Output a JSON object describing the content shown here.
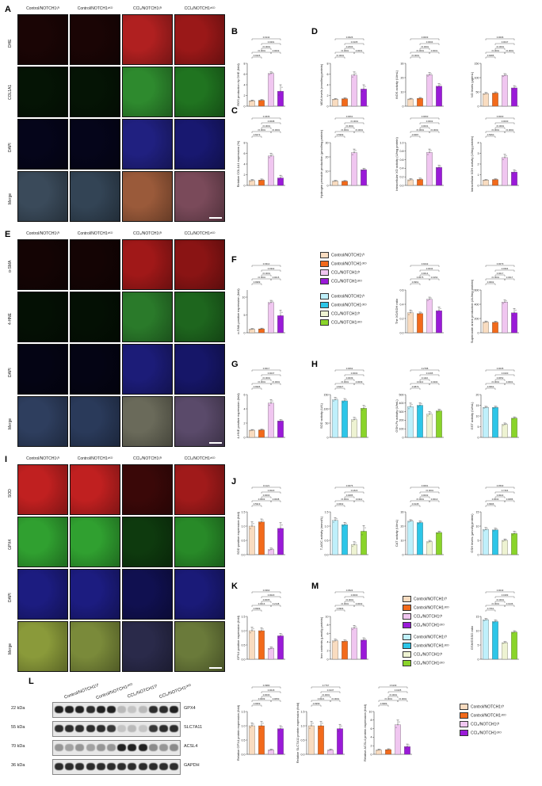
{
  "micro_panels": [
    {
      "panel": "A",
      "groups": [
        "Control/NOTCH1ᶠ/ᶠ",
        "Control/NOTCH1ᶜᴷᴼ",
        "CCl₄/NOTCH1ᶠ/ᶠ",
        "CCl₄/NOTCH1ᶜᴷᴼ"
      ],
      "rows": [
        "DHE",
        "COL1A1",
        "DAPI",
        "Merge"
      ],
      "row_colors": [
        [
          "#1a0505",
          "#1a0505",
          "#b02020",
          "#9a1818"
        ],
        [
          "#051405",
          "#051405",
          "#2e8a2e",
          "#207420"
        ],
        [
          "#05051a",
          "#05051a",
          "#202080",
          "#181870"
        ],
        [
          "#3a4a5a",
          "#334455",
          "#9a5a3a",
          "#7a4a5a"
        ]
      ]
    },
    {
      "panel": "E",
      "groups": [
        "Control/NOTCH1ᶠ/ᶠ",
        "Control/NOTCH1ᶜᴷᴼ",
        "CCl₄/NOTCH1ᶠ/ᶠ",
        "CCl₄/NOTCH1ᶜᴷᴼ"
      ],
      "rows": [
        "α-SMA",
        "4-HNE",
        "DAPI",
        "Merge"
      ],
      "row_colors": [
        [
          "#140404",
          "#140404",
          "#a01818",
          "#8a1414"
        ],
        [
          "#041004",
          "#041004",
          "#2a7a2a",
          "#1e661e"
        ],
        [
          "#040414",
          "#040414",
          "#1c1c78",
          "#161668"
        ],
        [
          "#2e3e5e",
          "#2a3a5a",
          "#6a6a5a",
          "#5a4a6a"
        ]
      ]
    },
    {
      "panel": "I",
      "groups": [
        "Control/NOTCH1ᶠ/ᶠ",
        "Control/NOTCH1ᶜᴷᴼ",
        "CCl₄/NOTCH1ᶠ/ᶠ",
        "CCl₄/NOTCH1ᶜᴷᴼ"
      ],
      "rows": [
        "SOD",
        "GPX4",
        "DAPI",
        "Merge"
      ],
      "row_colors": [
        [
          "#c02020",
          "#c02020",
          "#3a0808",
          "#a01a1a"
        ],
        [
          "#30a030",
          "#30a030",
          "#0e3a0e",
          "#288a28"
        ],
        [
          "#1c1c80",
          "#1c1c80",
          "#101050",
          "#1a1a78"
        ],
        [
          "#8a9a3a",
          "#7a8a3a",
          "#2a2a4a",
          "#6a7a3a"
        ]
      ]
    }
  ],
  "panel_letters": [
    "A",
    "B",
    "C",
    "D",
    "E",
    "F",
    "G",
    "H",
    "I",
    "J",
    "K",
    "L",
    "M"
  ],
  "legends": {
    "four_groups_a": [
      "Control/NOTCH1ᶠ/ᶠ",
      "Control/NOTCH1ᶜᴷᴼ",
      "CCl₄/NOTCH1ᶠ/ᶠ",
      "CCl₄/NOTCH1ᶜᴷᴼ"
    ],
    "colors_a": [
      "#f9dcc0",
      "#f26a1b",
      "#f0c6f0",
      "#9a1ad8"
    ],
    "colors_b": [
      "#bff0fb",
      "#2dc6e8",
      "#eef3d2",
      "#8ad42a"
    ]
  },
  "chart_data": [
    {
      "id": "B",
      "type": "bar",
      "ylabel": "ROS production by DHE (fold)",
      "ylim": [
        0,
        8
      ],
      "yticks": [
        "0",
        "2",
        "4",
        "6",
        "8"
      ],
      "values": [
        1,
        1.1,
        6.1,
        2.8
      ],
      "errors": [
        0.15,
        0.15,
        0.3,
        1.2
      ],
      "palette": "a",
      "stats": [
        "0.0426",
        "<0.0001",
        "<0.0001",
        "0.0003",
        "0.0291",
        "0.0142"
      ]
    },
    {
      "id": "D1",
      "type": "bar",
      "ylabel": "MDA levels (nmol/mg protein)",
      "ylim": [
        0,
        8
      ],
      "yticks": [
        "0",
        "2",
        "4",
        "6",
        "8"
      ],
      "values": [
        1.3,
        1.4,
        5.8,
        3.2
      ],
      "errors": [
        0.15,
        0.2,
        0.6,
        0.8
      ],
      "palette": "a",
      "stats": [
        "<0.0001",
        "<0.0001",
        "0.2003",
        "0.0001",
        "0.0105",
        "0.0026"
      ]
    },
    {
      "id": "D2",
      "type": "bar",
      "ylabel": "iNOS activity (U/mL)",
      "ylim": [
        0,
        30
      ],
      "yticks": [
        "0",
        "10",
        "20",
        "30"
      ],
      "values": [
        5,
        5.5,
        22,
        14
      ],
      "errors": [
        0.5,
        0.6,
        1.5,
        1.8
      ],
      "palette": "a",
      "stats": [
        "<0.0001",
        "<0.0001",
        "<0.0001",
        "0.0001",
        "0.0004",
        "0.0003"
      ]
    },
    {
      "id": "D3",
      "type": "bar",
      "ylabel": "NO levels (μg/mL)",
      "ylim": [
        0,
        150
      ],
      "yticks": [
        "0",
        "50",
        "100",
        "150"
      ],
      "values": [
        44,
        46,
        108,
        64
      ],
      "errors": [
        4,
        4,
        6,
        8
      ],
      "palette": "a",
      "stats": [
        "0.6685",
        "<0.0001",
        "<0.0001",
        "<0.0001",
        "0.0047",
        "0.0006"
      ]
    },
    {
      "id": "C",
      "type": "bar",
      "ylabel": "Relative COL1A1 expression (%)",
      "ylim": [
        0,
        8
      ],
      "yticks": [
        "0",
        "2",
        "4",
        "6",
        "8"
      ],
      "values": [
        0.9,
        1.0,
        5.5,
        1.4
      ],
      "errors": [
        0.2,
        0.2,
        0.5,
        0.5
      ],
      "palette": "a",
      "stats": [
        "0.6673",
        "<0.0001",
        "<0.0001",
        "<0.0001",
        "0.0098",
        "0.4636"
      ]
    },
    {
      "id": "C2",
      "type": "bar",
      "ylabel": "Hydrogen peroxide production (μmol/mg protein)",
      "ylim": [
        0,
        30
      ],
      "yticks": [
        "0",
        "10",
        "20",
        "30"
      ],
      "values": [
        3,
        3,
        23,
        11
      ],
      "errors": [
        0.5,
        0.4,
        2.5,
        1
      ],
      "palette": "a",
      "stats": [
        "0.5999",
        "<0.0001",
        "<0.0001",
        "<0.0001",
        "<0.0001",
        "0.0061"
      ]
    },
    {
      "id": "C3",
      "type": "bar",
      "ylabel": "Intracellular XO activity (U/mg protein)",
      "ylim": [
        0,
        1.0
      ],
      "yticks": [
        "0.0",
        "0.2",
        "0.4",
        "0.6",
        "0.8",
        "1.0"
      ],
      "values": [
        0.13,
        0.14,
        0.77,
        0.42
      ],
      "errors": [
        0.03,
        0.03,
        0.08,
        0.05
      ],
      "palette": "a",
      "stats": [
        "0.6687",
        "<0.0001",
        "0.0031",
        "<0.0001",
        "0.0002",
        "0.0060"
      ]
    },
    {
      "id": "C4",
      "type": "bar",
      "ylabel": "Intracellular XDH activity (U/mg protein)",
      "ylim": [
        0,
        4
      ],
      "yticks": [
        "0",
        "1",
        "2",
        "3",
        "4"
      ],
      "values": [
        0.5,
        0.55,
        2.6,
        1.25
      ],
      "errors": [
        0.05,
        0.06,
        0.3,
        0.2
      ],
      "palette": "a",
      "stats": [
        "0.5660",
        "<0.0001",
        "<0.0001",
        "<0.0001",
        "0.0030",
        "0.0000"
      ]
    },
    {
      "id": "F",
      "type": "bar",
      "ylabel": "α-SMA positive expression (fold)",
      "ylim": [
        0,
        12
      ],
      "yticks": [
        "0",
        "5",
        "10"
      ],
      "values": [
        1,
        1.1,
        8.5,
        4.8
      ],
      "errors": [
        0.2,
        0.2,
        0.6,
        1.5
      ],
      "palette": "a",
      "stats": [
        "0.9989",
        "<0.0001",
        "<0.0001",
        "0.0015",
        "0.0302",
        "0.0314"
      ]
    },
    {
      "id": "F2",
      "type": "bar",
      "ylabel": "The XO/XDH ratio",
      "ylim": [
        0,
        0.6
      ],
      "yticks": [
        "0.0",
        "0.2",
        "0.4",
        "0.6"
      ],
      "values": [
        0.28,
        0.27,
        0.47,
        0.31
      ],
      "errors": [
        0.04,
        0.02,
        0.03,
        0.05
      ],
      "palette": "a",
      "stats": [
        "0.9961",
        "0.0075",
        "0.0014",
        "0.0154",
        "0.0034",
        "0.9442"
      ]
    },
    {
      "id": "F3",
      "type": "bar",
      "ylabel": "Superoxide anion production (AU/mg protein)",
      "ylim": [
        0,
        600
      ],
      "yticks": [
        "0",
        "200",
        "400",
        "600"
      ],
      "values": [
        150,
        148,
        430,
        280
      ],
      "errors": [
        15,
        15,
        30,
        60
      ],
      "palette": "a",
      "stats": [
        "0.9602",
        "<0.0001",
        "0.0017",
        "0.0317",
        "0.0394",
        "0.0079"
      ]
    },
    {
      "id": "G",
      "type": "bar",
      "ylabel": "4-HNE positive expression (fold)",
      "ylim": [
        0,
        6
      ],
      "yticks": [
        "0",
        "2",
        "4",
        "6"
      ],
      "values": [
        1,
        1.05,
        4.8,
        2.3
      ],
      "errors": [
        0.1,
        0.1,
        0.5,
        0.2
      ],
      "palette": "a",
      "stats": [
        "0.9995",
        "<0.0001",
        "<0.0001",
        "<0.0001",
        "0.0037",
        "0.0017"
      ]
    },
    {
      "id": "H1",
      "type": "bar",
      "ylabel": "SOD activity (U/L)",
      "ylim": [
        0,
        150
      ],
      "yticks": [
        "0",
        "50",
        "100",
        "150"
      ],
      "values": [
        132,
        128,
        62,
        102
      ],
      "errors": [
        8,
        8,
        8,
        10
      ],
      "palette": "b",
      "stats": [
        "0.8427",
        "<0.0001",
        "0.0039",
        "0.0009",
        "0.0004",
        "0.0062"
      ]
    },
    {
      "id": "H2",
      "type": "bar",
      "ylabel": "GSH-Px activity (U/mL)",
      "ylim": [
        0,
        500
      ],
      "yticks": [
        "0",
        "100",
        "200",
        "300",
        "400",
        "500"
      ],
      "values": [
        360,
        375,
        270,
        310
      ],
      "errors": [
        40,
        30,
        30,
        20
      ],
      "palette": "b",
      "stats": [
        "0.9879",
        "0.0113",
        "0.1110",
        "0.3204",
        "0.1695",
        "0.2788"
      ]
    },
    {
      "id": "H3",
      "type": "bar",
      "ylabel": "GST activity (U/mL)",
      "ylim": [
        0,
        20
      ],
      "yticks": [
        "0",
        "5",
        "10",
        "15",
        "20"
      ],
      "values": [
        14,
        14,
        6,
        9
      ],
      "errors": [
        0.5,
        0.6,
        0.7,
        0.6
      ],
      "palette": "b",
      "stats": [
        "0.9962",
        "<0.0001",
        "0.0052",
        "0.0001",
        "0.0100",
        "0.0035"
      ]
    },
    {
      "id": "J1",
      "type": "bar",
      "ylabel": "SOD positive expression (fold)",
      "ylim": [
        0,
        1.5
      ],
      "yticks": [
        "0.0",
        "0.5",
        "1.0",
        "1.5"
      ],
      "values": [
        1.0,
        1.15,
        0.18,
        0.92
      ],
      "errors": [
        0.15,
        0.1,
        0.05,
        0.2
      ],
      "palette": "a",
      "stats": [
        "0.5919",
        "0.0003",
        "0.0003",
        "0.0008",
        "0.0020",
        "0.1121"
      ]
    },
    {
      "id": "J2",
      "type": "bar",
      "ylabel": "T-AOC activity (mmol/L)",
      "ylim": [
        0,
        1.5
      ],
      "yticks": [
        "0.0",
        "0.5",
        "1.0",
        "1.5"
      ],
      "values": [
        1.2,
        1.05,
        0.35,
        0.82
      ],
      "errors": [
        0.1,
        0.08,
        0.1,
        0.2
      ],
      "palette": "b",
      "stats": [
        "0.0602",
        "<0.0001",
        "0.0085",
        "0.0112",
        "0.1823",
        "0.0076"
      ]
    },
    {
      "id": "J3",
      "type": "bar",
      "ylabel": "CAT activity (U/mL)",
      "ylim": [
        0,
        30
      ],
      "yticks": [
        "0",
        "10",
        "20",
        "30"
      ],
      "values": [
        23.5,
        22.5,
        9,
        15.5
      ],
      "errors": [
        1,
        1.2,
        1,
        1
      ],
      "palette": "b",
      "stats": [
        "0.9138",
        "<0.0001",
        "0.0032",
        "0.0010",
        "<0.0001",
        "0.0091"
      ]
    },
    {
      "id": "J4",
      "type": "bar",
      "ylabel": "GSH levels (μmol/g protein)",
      "ylim": [
        0,
        15
      ],
      "yticks": [
        "0",
        "5",
        "10",
        "15"
      ],
      "values": [
        8.8,
        8.7,
        5,
        7.4
      ],
      "errors": [
        0.7,
        0.6,
        0.5,
        0.8
      ],
      "palette": "b",
      "stats": [
        "0.9996",
        "0.0030",
        "0.0022",
        "0.0086",
        "0.7464",
        "0.0530"
      ]
    },
    {
      "id": "K",
      "type": "bar",
      "ylabel": "GPX4 positive expression (fold)",
      "ylim": [
        0,
        1.5
      ],
      "yticks": [
        "0.0",
        "0.5",
        "1.0",
        "1.5"
      ],
      "values": [
        1.0,
        1.0,
        0.38,
        0.82
      ],
      "errors": [
        0.12,
        0.1,
        0.05,
        0.08
      ],
      "palette": "a",
      "stats": [
        "0.9999",
        "0.0016",
        "0.0005",
        "0.2148",
        "0.0020",
        "0.0360"
      ]
    },
    {
      "id": "M1",
      "type": "bar",
      "ylabel": "Iron contents (μmol/g protein)",
      "ylim": [
        0,
        10
      ],
      "yticks": [
        "0",
        "2",
        "4",
        "6",
        "8",
        "10"
      ],
      "values": [
        4.3,
        4.2,
        7.3,
        4.5
      ],
      "errors": [
        0.4,
        0.3,
        0.6,
        0.5
      ],
      "palette": "a",
      "stats": [
        "0.9966",
        "<0.0001",
        "<0.0001",
        "0.0002",
        "0.0003",
        "0.0524"
      ]
    },
    {
      "id": "M2",
      "type": "bar",
      "ylabel": "GSH/GSSG ratio",
      "ylim": [
        0,
        15
      ],
      "yticks": [
        "0",
        "5",
        "10",
        "15"
      ],
      "values": [
        13.8,
        13.2,
        5.8,
        9.5
      ],
      "errors": [
        0.5,
        0.6,
        0.4,
        0.5
      ],
      "palette": "b",
      "stats": [
        "0.7661",
        "<0.0001",
        "<0.0001",
        "0.0136",
        "0.0183",
        "0.0043"
      ]
    },
    {
      "id": "L1",
      "type": "bar",
      "ylabel": "Relative GPX4 protein expression (fold)",
      "ylim": [
        0,
        1.5
      ],
      "yticks": [
        "0.0",
        "0.5",
        "1.0",
        "1.5"
      ],
      "values": [
        1.0,
        1.0,
        0.15,
        0.9
      ],
      "errors": [
        0.1,
        0.15,
        0.03,
        0.1
      ],
      "palette": "a",
      "stats": [
        "0.9959",
        "0.0009",
        "0.0030",
        "0.0050",
        "0.0018",
        "0.3980"
      ]
    },
    {
      "id": "L2",
      "type": "bar",
      "ylabel": "Relative SLC7A11 protein expression (fold)",
      "ylim": [
        0,
        1.5
      ],
      "yticks": [
        "0.0",
        "0.5",
        "1.0",
        "1.5"
      ],
      "values": [
        1.0,
        1.0,
        0.15,
        0.9
      ],
      "errors": [
        0.15,
        0.15,
        0.03,
        0.15
      ],
      "palette": "a",
      "stats": [
        "0.9958",
        "0.0021",
        "<0.0001",
        "<0.0001",
        "0.0137",
        "0.7767"
      ]
    },
    {
      "id": "L3",
      "type": "bar",
      "ylabel": "Relative ACSL4 protein expression (fold)",
      "ylim": [
        0,
        10
      ],
      "yticks": [
        "0",
        "2",
        "4",
        "6",
        "8",
        "10"
      ],
      "values": [
        1.0,
        1.1,
        6.9,
        1.8
      ],
      "errors": [
        0.2,
        0.2,
        1.1,
        0.6
      ],
      "palette": "a",
      "stats": [
        "0.9989",
        "<0.0001",
        "<0.0001",
        "<0.0001",
        "0.0105",
        "0.6109"
      ]
    }
  ],
  "western_blot": {
    "groups": [
      "Control/NOTCH1ᶠ/ᶠ",
      "Control/NOTCH1ᶜᴷᴼ",
      "CCl₄/NOTCH1ᶠ/ᶠ",
      "CCl₄/NOTCH1ᶜᴷᴼ"
    ],
    "bands": [
      {
        "kda": "22 kDa",
        "name": "GPX4",
        "intensity": [
          0.95,
          0.95,
          0.95,
          0.9,
          0.95,
          0.95,
          0.3,
          0.25,
          0.3,
          0.9,
          0.9,
          0.95
        ]
      },
      {
        "kda": "55 kDa",
        "name": "SLC7A11",
        "intensity": [
          0.9,
          0.9,
          0.9,
          0.9,
          0.9,
          0.85,
          0.25,
          0.3,
          0.25,
          0.85,
          0.9,
          0.9
        ]
      },
      {
        "kda": "70 kDa",
        "name": "ACSL4",
        "intensity": [
          0.45,
          0.4,
          0.45,
          0.4,
          0.45,
          0.45,
          0.95,
          0.95,
          0.95,
          0.5,
          0.45,
          0.5
        ]
      },
      {
        "kda": "36 kDa",
        "name": "GAPDH",
        "intensity": [
          0.9,
          0.9,
          0.9,
          0.9,
          0.9,
          0.9,
          0.9,
          0.9,
          0.9,
          0.9,
          0.9,
          0.9
        ]
      }
    ]
  }
}
